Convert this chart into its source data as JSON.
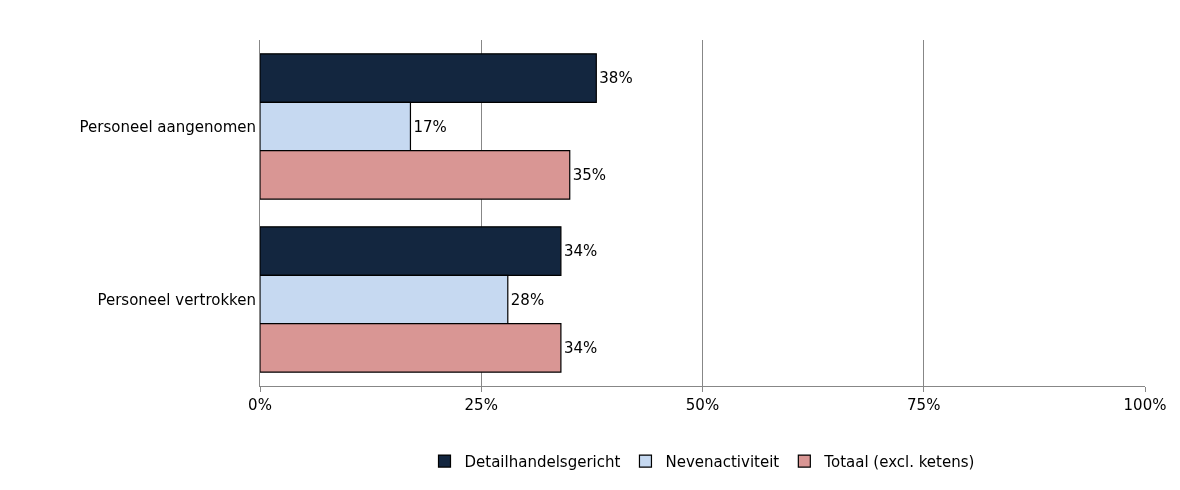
{
  "chart_data": {
    "type": "bar",
    "orientation": "horizontal",
    "categories": [
      "Personeel aangenomen",
      "Personeel vertrokken"
    ],
    "series": [
      {
        "name": "Detailhandelsgericht",
        "color": "#13263f",
        "values": [
          38,
          34
        ],
        "value_labels": [
          "38%",
          "34%"
        ]
      },
      {
        "name": "Nevenactiviteit",
        "color": "#c6d9f1",
        "values": [
          17,
          28
        ],
        "value_labels": [
          "17%",
          "28%"
        ]
      },
      {
        "name": "Totaal (excl. ketens)",
        "color": "#d99694",
        "values": [
          35,
          34
        ],
        "value_labels": [
          "35%",
          "34%"
        ]
      }
    ],
    "xlim": [
      0,
      100
    ],
    "xticks": [
      {
        "value": 0,
        "label": "0%"
      },
      {
        "value": 25,
        "label": "25%"
      },
      {
        "value": 50,
        "label": "50%"
      },
      {
        "value": 75,
        "label": "75%"
      },
      {
        "value": 100,
        "label": "100%"
      }
    ],
    "grid": "x",
    "legend": "bottom"
  }
}
